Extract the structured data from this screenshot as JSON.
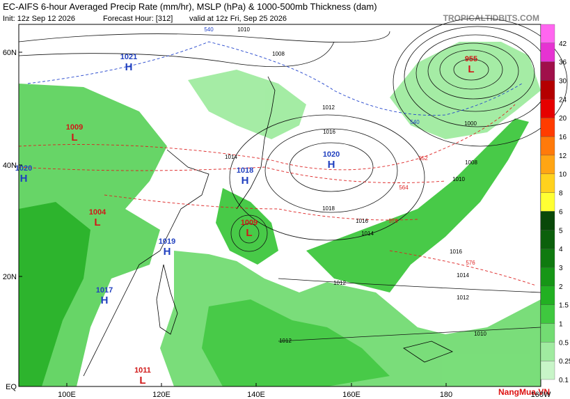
{
  "header": {
    "title": "EC-AIFS 6-hour Averaged Precip Rate (mm/hr), MSLP (hPa) & 1000-500mb Thickness (dam)",
    "init": "Init: 12z Sep 12 2026",
    "forecast_hour": "Forecast Hour: [312]",
    "valid": "valid at 12z Fri, Sep 25 2026",
    "site": "TROPICALTIDBITS.COM"
  },
  "axes": {
    "lat_labels": [
      "60N",
      "40N",
      "20N",
      "EQ"
    ],
    "lon_labels": [
      "100E",
      "120E",
      "140E",
      "160E",
      "180",
      "160W"
    ]
  },
  "colorbar": {
    "levels": [
      0.1,
      0.25,
      0.5,
      1,
      1.5,
      2,
      3,
      4,
      5,
      6,
      8,
      10,
      12,
      16,
      20,
      24,
      30,
      36,
      42
    ],
    "colors": [
      "#c8f5c8",
      "#a0eba0",
      "#73dc73",
      "#3fc83f",
      "#22b022",
      "#169616",
      "#0f7a0f",
      "#0b600b",
      "#094809",
      "#ffff33",
      "#ffd21e",
      "#ffa514",
      "#ff7a0a",
      "#ff3c00",
      "#e60000",
      "#b40000",
      "#a0104a",
      "#e633d2",
      "#ff66f0"
    ]
  },
  "centers": [
    {
      "symbol": "H",
      "pressure": "1021"
    },
    {
      "symbol": "L",
      "pressure": "1009"
    },
    {
      "symbol": "H",
      "pressure": "1020"
    },
    {
      "symbol": "L",
      "pressure": "1004"
    },
    {
      "symbol": "H",
      "pressure": "1019"
    },
    {
      "symbol": "H",
      "pressure": "1017"
    },
    {
      "symbol": "L",
      "pressure": "1011"
    },
    {
      "symbol": "H",
      "pressure": "1018"
    },
    {
      "symbol": "L",
      "pressure": "1009"
    },
    {
      "symbol": "H",
      "pressure": "1020"
    },
    {
      "symbol": "L",
      "pressure": "955"
    }
  ],
  "contour_labels": [
    "1010",
    "1008",
    "1012",
    "1016",
    "1014",
    "1018",
    "1016",
    "1014",
    "1012",
    "1012",
    "1012",
    "1010",
    "564",
    "576",
    "552",
    "540",
    "540",
    "1000",
    "1008",
    "1010",
    "1016",
    "1014",
    "576"
  ],
  "watermark": "NangMua.VN"
}
